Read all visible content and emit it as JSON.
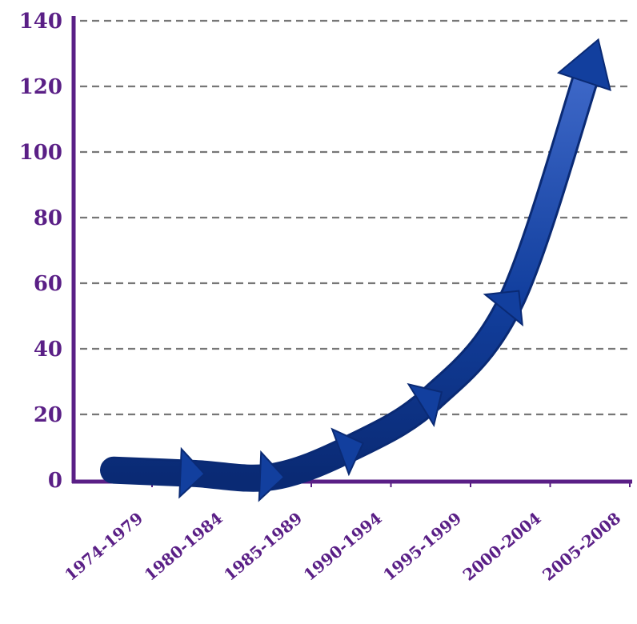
{
  "chart_data": {
    "type": "line",
    "categories": [
      "1974-1979",
      "1980-1984",
      "1985-1989",
      "1990-1994",
      "1995-1999",
      "2000-2004",
      "2005-2008"
    ],
    "series": [
      {
        "values": [
          3,
          2,
          1,
          10,
          25,
          55,
          125
        ]
      }
    ],
    "title": "",
    "xlabel": "",
    "ylabel": "",
    "ylim": [
      0,
      140
    ],
    "yticks": [
      0,
      20,
      40,
      60,
      80,
      100,
      120,
      140
    ],
    "grid": true,
    "legend": "none",
    "colors": {
      "axis": "#5a1f86",
      "tick_label": "#5a1f86",
      "grid": "#777777",
      "arrow": "#123f9e",
      "arrow_dark": "#0a2a74",
      "arrow_light": "#3f69c9"
    }
  }
}
